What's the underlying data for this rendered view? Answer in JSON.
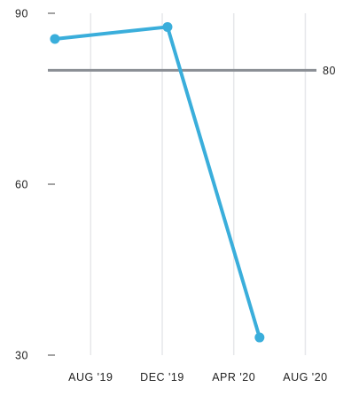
{
  "chart_data": {
    "type": "line",
    "title": "",
    "xlabel": "",
    "ylabel": "",
    "x_tick_labels": [
      "AUG '19",
      "DEC '19",
      "APR '20",
      "AUG '20"
    ],
    "x_ticks": [
      "2019-08-01",
      "2019-12-01",
      "2020-04-01",
      "2020-08-01"
    ],
    "xlim": [
      "2019-05-20",
      "2020-08-20"
    ],
    "y_tick_labels": [
      "30",
      "60",
      "90"
    ],
    "y_ticks": [
      30,
      60,
      90
    ],
    "ylim": [
      30,
      90
    ],
    "grid": "vertical",
    "series": [
      {
        "color": "#3aaedb",
        "points": [
          {
            "x": "2019-06-01",
            "y": 85.5
          },
          {
            "x": "2019-12-10",
            "y": 87.6
          },
          {
            "x": "2020-05-15",
            "y": 33.1
          }
        ]
      }
    ],
    "reference_line": {
      "value": 80,
      "label": "80",
      "color": "#8a8e94"
    }
  }
}
